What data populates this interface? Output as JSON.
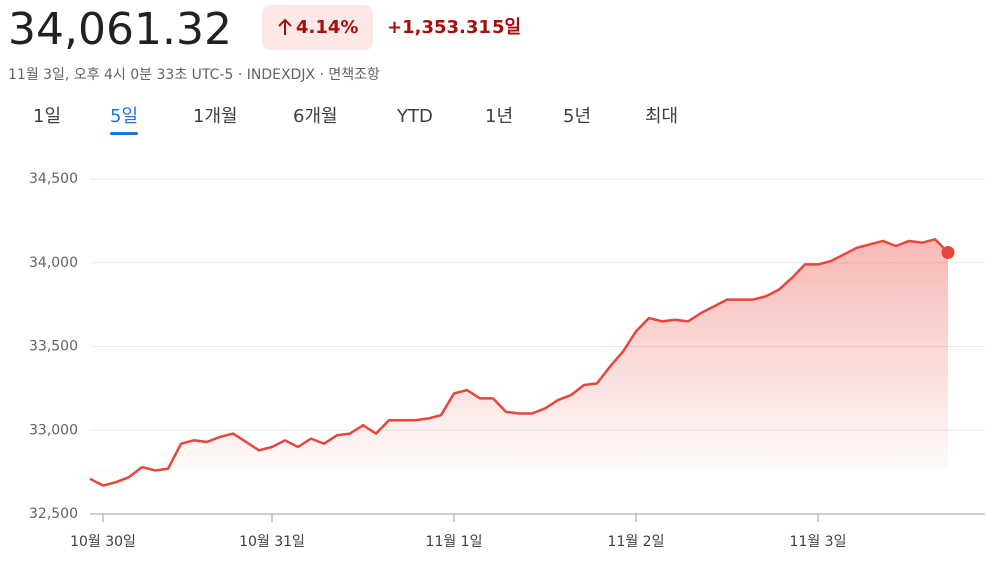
{
  "header": {
    "price": "34,061.32",
    "change_percent": "4.14%",
    "change_value": "+1,353.31",
    "period": "5일",
    "timestamp": "11월 3일, 오후 4시 0분 33초 UTC-5 · INDEXDJX · ",
    "disclaimer": "면책조항"
  },
  "tabs": [
    "1일",
    "5일",
    "1개월",
    "6개월",
    "YTD",
    "1년",
    "5년",
    "최대"
  ],
  "selected_tab": 1,
  "chart_data": {
    "type": "line",
    "color": "#e8453c",
    "grid": true,
    "categories": [
      null,
      "10월 30일",
      null,
      null,
      null,
      null,
      null,
      null,
      null,
      null,
      null,
      null,
      null,
      null,
      "10월 31일",
      null,
      null,
      null,
      null,
      null,
      null,
      null,
      null,
      null,
      null,
      null,
      null,
      null,
      "11월 1일",
      null,
      null,
      null,
      null,
      null,
      null,
      null,
      null,
      null,
      null,
      null,
      null,
      null,
      "11월 2일",
      null,
      null,
      null,
      null,
      null,
      null,
      null,
      null,
      null,
      null,
      null,
      null,
      null,
      "11월 3일",
      null,
      null,
      null,
      null,
      null,
      null,
      null,
      null,
      null,
      null
    ],
    "values": [
      32710,
      32670,
      32690,
      32720,
      32780,
      32760,
      32770,
      32920,
      32940,
      32930,
      32960,
      32980,
      32930,
      32880,
      32900,
      32940,
      32900,
      32950,
      32920,
      32970,
      32980,
      33030,
      32980,
      33060,
      33060,
      33060,
      33070,
      33090,
      33220,
      33240,
      33190,
      33190,
      33110,
      33100,
      33100,
      33130,
      33180,
      33210,
      33270,
      33280,
      33380,
      33470,
      33590,
      33670,
      33650,
      33660,
      33650,
      33700,
      33740,
      33780,
      33780,
      33780,
      33800,
      33840,
      33910,
      33990,
      33990,
      34010,
      34050,
      34090,
      34110,
      34130,
      34100,
      34130,
      34120,
      34140,
      34061.32
    ],
    "ylim": [
      32500,
      34500
    ],
    "yticks": [
      {
        "value": 32500,
        "label": "32,500"
      },
      {
        "value": 33000,
        "label": "33,000"
      },
      {
        "value": 33500,
        "label": "33,500"
      },
      {
        "value": 34000,
        "label": "34,000"
      },
      {
        "value": 34500,
        "label": "34,500"
      }
    ]
  }
}
